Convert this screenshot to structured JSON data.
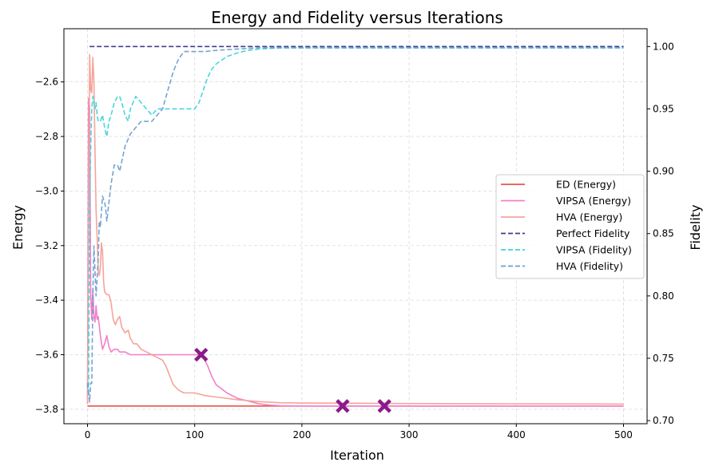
{
  "chart_data": {
    "type": "line",
    "title": "Energy and Fidelity versus Iterations",
    "xlabel": "Iteration",
    "ylabel_left": "Energy",
    "ylabel_right": "Fidelity",
    "xlim": [
      -22,
      522
    ],
    "ylim_left": [
      -3.853,
      -2.405
    ],
    "ylim_right": [
      0.6975,
      1.0143
    ],
    "x_ticks": [
      0,
      100,
      200,
      300,
      400,
      500
    ],
    "x_tick_labels": [
      "0",
      "100",
      "200",
      "300",
      "400",
      "500"
    ],
    "y_left_ticks": [
      -3.8,
      -3.6,
      -3.4,
      -3.2,
      -3.0,
      -2.8,
      -2.6
    ],
    "y_left_tick_labels": [
      "−3.8",
      "−3.6",
      "−3.4",
      "−3.2",
      "−3.0",
      "−2.8",
      "−2.6"
    ],
    "y_right_ticks": [
      0.7,
      0.75,
      0.8,
      0.85,
      0.9,
      0.95,
      1.0
    ],
    "y_right_tick_labels": [
      "0.70",
      "0.75",
      "0.80",
      "0.85",
      "0.90",
      "0.95",
      "1.00"
    ],
    "grid": true,
    "legend_position": "center-right",
    "series": [
      {
        "name": "ED (Energy)",
        "axis": "left",
        "color": "#e8534a",
        "style": "solid",
        "x": [
          0,
          500
        ],
        "y": [
          -3.788,
          -3.788
        ]
      },
      {
        "name": "VIPSA (Energy)",
        "axis": "left",
        "color": "#f27fc9",
        "style": "solid",
        "x": [
          0,
          1,
          2,
          3,
          4,
          5,
          6,
          7,
          8,
          9,
          10,
          12,
          14,
          16,
          18,
          20,
          22,
          25,
          28,
          30,
          35,
          40,
          45,
          50,
          60,
          70,
          80,
          90,
          100,
          105,
          108,
          112,
          116,
          120,
          130,
          140,
          150,
          160,
          170,
          180,
          200,
          230,
          260,
          300,
          400,
          500
        ],
        "y": [
          -3.78,
          -2.66,
          -2.69,
          -3.38,
          -3.47,
          -3.36,
          -3.46,
          -3.48,
          -3.42,
          -3.47,
          -3.46,
          -3.53,
          -3.58,
          -3.56,
          -3.53,
          -3.57,
          -3.59,
          -3.58,
          -3.58,
          -3.59,
          -3.59,
          -3.6,
          -3.6,
          -3.6,
          -3.6,
          -3.6,
          -3.6,
          -3.6,
          -3.6,
          -3.6,
          -3.61,
          -3.64,
          -3.68,
          -3.71,
          -3.74,
          -3.76,
          -3.77,
          -3.78,
          -3.785,
          -3.787,
          -3.788,
          -3.788,
          -3.788,
          -3.788,
          -3.788,
          -3.788
        ]
      },
      {
        "name": "HVA (Energy)",
        "axis": "left",
        "color": "#f5a49a",
        "style": "solid",
        "x": [
          0,
          2,
          3,
          4,
          5,
          6,
          7,
          8,
          9,
          10,
          11,
          12,
          13,
          14,
          15,
          16,
          18,
          20,
          22,
          24,
          26,
          28,
          30,
          32,
          35,
          38,
          40,
          43,
          46,
          50,
          55,
          60,
          65,
          70,
          73,
          76,
          80,
          85,
          90,
          95,
          100,
          110,
          120,
          140,
          160,
          180,
          200,
          250,
          300,
          400,
          500
        ],
        "y": [
          -3.78,
          -2.5,
          -2.63,
          -2.64,
          -2.51,
          -2.6,
          -2.85,
          -3.07,
          -3.17,
          -3.29,
          -3.31,
          -3.28,
          -3.19,
          -3.22,
          -3.33,
          -3.37,
          -3.38,
          -3.38,
          -3.41,
          -3.47,
          -3.49,
          -3.47,
          -3.46,
          -3.5,
          -3.52,
          -3.51,
          -3.54,
          -3.56,
          -3.56,
          -3.58,
          -3.59,
          -3.6,
          -3.61,
          -3.62,
          -3.64,
          -3.67,
          -3.71,
          -3.73,
          -3.74,
          -3.74,
          -3.74,
          -3.75,
          -3.755,
          -3.765,
          -3.772,
          -3.776,
          -3.777,
          -3.778,
          -3.779,
          -3.78,
          -3.781
        ]
      },
      {
        "name": "Perfect Fidelity",
        "axis": "right",
        "color": "#3f3f8f",
        "style": "dashed",
        "x": [
          2,
          500
        ],
        "y": [
          1.0,
          1.0
        ]
      },
      {
        "name": "VIPSA (Fidelity)",
        "axis": "right",
        "color": "#3fd4d8",
        "style": "dashed",
        "x": [
          0,
          1,
          2,
          3,
          4,
          5,
          6,
          7,
          8,
          9,
          10,
          12,
          14,
          16,
          18,
          20,
          22,
          25,
          28,
          30,
          32,
          35,
          38,
          40,
          45,
          50,
          55,
          60,
          65,
          70,
          80,
          90,
          100,
          104,
          108,
          112,
          116,
          120,
          130,
          140,
          150,
          160,
          180,
          200,
          300,
          400,
          500
        ],
        "y": [
          0.73,
          0.72,
          0.87,
          0.92,
          0.95,
          0.96,
          0.955,
          0.95,
          0.955,
          0.945,
          0.94,
          0.94,
          0.945,
          0.935,
          0.928,
          0.94,
          0.945,
          0.955,
          0.96,
          0.96,
          0.955,
          0.945,
          0.94,
          0.95,
          0.96,
          0.955,
          0.95,
          0.945,
          0.95,
          0.95,
          0.95,
          0.95,
          0.95,
          0.955,
          0.965,
          0.975,
          0.982,
          0.986,
          0.992,
          0.995,
          0.997,
          0.998,
          0.999,
          0.999,
          0.999,
          0.999,
          0.999
        ]
      },
      {
        "name": "HVA (Fidelity)",
        "axis": "right",
        "color": "#6f9fcf",
        "style": "dashed",
        "x": [
          0,
          2,
          3,
          4,
          5,
          6,
          7,
          8,
          9,
          10,
          11,
          12,
          14,
          16,
          17,
          18,
          20,
          22,
          25,
          28,
          30,
          35,
          40,
          50,
          60,
          65,
          70,
          75,
          80,
          85,
          90,
          100,
          110,
          120,
          140,
          160,
          180,
          200,
          300,
          400,
          500
        ],
        "y": [
          0.73,
          0.715,
          0.73,
          0.73,
          0.8,
          0.84,
          0.82,
          0.8,
          0.815,
          0.83,
          0.86,
          0.855,
          0.88,
          0.875,
          0.87,
          0.86,
          0.875,
          0.89,
          0.905,
          0.905,
          0.9,
          0.92,
          0.93,
          0.94,
          0.94,
          0.945,
          0.95,
          0.965,
          0.98,
          0.99,
          0.996,
          0.996,
          0.996,
          0.997,
          0.998,
          0.999,
          0.999,
          0.999,
          0.999,
          0.999,
          0.999
        ]
      }
    ],
    "markers": [
      {
        "x": 106,
        "y": -3.6,
        "axis": "left",
        "color": "#8b1a8b",
        "shape": "X"
      },
      {
        "x": 238,
        "y": -3.788,
        "axis": "left",
        "color": "#8b1a8b",
        "shape": "X"
      },
      {
        "x": 277,
        "y": -3.788,
        "axis": "left",
        "color": "#8b1a8b",
        "shape": "X"
      }
    ]
  }
}
